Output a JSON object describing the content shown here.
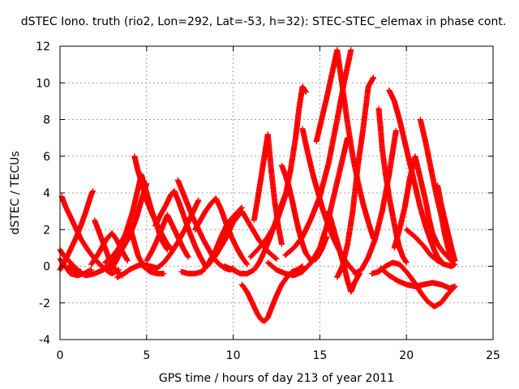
{
  "chart_data": {
    "type": "scatter",
    "title": "dSTEC Iono. truth (rio2, Lon=292, Lat=-53, h=32): STEC-STEC_elemax in phase cont.",
    "xlabel": "GPS time / hours of day 213 of year 2011",
    "ylabel": "dSTEC  / TECUs",
    "xlim": [
      0,
      25
    ],
    "ylim": [
      -4,
      12
    ],
    "xticks": [
      0,
      5,
      10,
      15,
      20,
      25
    ],
    "yticks": [
      -4,
      -2,
      0,
      2,
      4,
      6,
      8,
      10,
      12
    ],
    "grid": true,
    "marker": "plus",
    "color": "#ff0000",
    "tracks": [
      {
        "x": [
          0.0,
          0.2,
          0.5,
          0.8,
          1.0,
          1.2
        ],
        "y": [
          0.9,
          0.6,
          0.3,
          0.0,
          -0.2,
          -0.3
        ]
      },
      {
        "x": [
          0.1,
          0.3,
          0.6,
          0.9,
          1.2,
          1.6,
          2.0,
          2.4,
          2.8,
          3.0,
          3.2,
          3.4
        ],
        "y": [
          3.8,
          3.3,
          2.7,
          2.1,
          1.5,
          0.9,
          0.4,
          0.0,
          -0.3,
          -0.4,
          -0.3,
          -0.2
        ]
      },
      {
        "x": [
          0.0,
          0.3,
          0.6,
          1.0,
          1.4,
          1.8
        ],
        "y": [
          0.4,
          0.0,
          -0.4,
          -0.5,
          -0.4,
          -0.2
        ]
      },
      {
        "x": [
          0.0,
          0.3,
          0.6,
          0.9,
          1.2,
          1.5,
          1.8,
          1.9
        ],
        "y": [
          -0.2,
          0.3,
          0.9,
          1.5,
          2.2,
          3.0,
          3.9,
          4.1
        ]
      },
      {
        "x": [
          0.5,
          1.0,
          1.5,
          2.0,
          2.5,
          3.0,
          3.5,
          4.0,
          4.4,
          4.7,
          5.0
        ],
        "y": [
          0.0,
          -0.3,
          -0.5,
          -0.4,
          -0.2,
          0.2,
          0.8,
          1.6,
          2.6,
          3.6,
          4.5
        ]
      },
      {
        "x": [
          2.0,
          2.2,
          2.4,
          2.6,
          2.8,
          3.0,
          3.2,
          3.4,
          3.6
        ],
        "y": [
          2.5,
          2.0,
          1.5,
          1.0,
          0.5,
          0.1,
          -0.2,
          -0.4,
          -0.5
        ]
      },
      {
        "x": [
          1.8,
          2.1,
          2.4,
          2.7,
          3.0,
          3.3,
          3.6,
          3.9
        ],
        "y": [
          0.1,
          0.5,
          1.0,
          1.5,
          1.8,
          1.4,
          0.8,
          0.3
        ]
      },
      {
        "x": [
          2.6,
          3.0,
          3.4,
          3.8,
          4.2,
          4.5,
          4.7,
          5.0,
          5.3,
          5.6,
          5.8,
          6.0,
          6.2
        ],
        "y": [
          0.2,
          0.5,
          1.0,
          1.8,
          3.0,
          4.2,
          5.0,
          4.0,
          3.0,
          2.2,
          1.6,
          1.2,
          0.9
        ]
      },
      {
        "x": [
          4.3,
          4.5,
          4.8,
          5.0,
          5.3,
          5.6,
          5.9,
          6.2,
          6.5
        ],
        "y": [
          6.0,
          5.2,
          4.3,
          3.6,
          2.9,
          2.3,
          1.7,
          1.2,
          0.9
        ]
      },
      {
        "x": [
          2.9,
          3.2,
          3.5,
          3.8,
          4.0,
          4.2,
          4.5,
          4.8,
          5.2,
          5.6,
          6.0
        ],
        "y": [
          -0.2,
          0.2,
          0.8,
          1.5,
          2.3,
          1.6,
          0.6,
          0.0,
          -0.3,
          -0.4,
          -0.4
        ]
      },
      {
        "x": [
          3.3,
          3.7,
          4.0,
          4.4,
          4.8,
          5.2,
          5.6,
          6.0,
          6.4,
          6.8,
          7.2,
          7.6,
          8.0
        ],
        "y": [
          -0.6,
          -0.4,
          -0.2,
          0.0,
          0.1,
          0.0,
          -0.1,
          0.2,
          0.7,
          1.3,
          2.0,
          2.8,
          3.6
        ]
      },
      {
        "x": [
          5.0,
          5.3,
          5.6,
          5.9,
          6.2,
          6.5,
          6.8,
          7.1,
          7.4
        ],
        "y": [
          0.3,
          0.8,
          1.4,
          2.1,
          2.8,
          2.2,
          1.6,
          1.0,
          0.5
        ]
      },
      {
        "x": [
          5.5,
          5.8,
          6.1,
          6.4,
          6.6,
          6.9,
          7.2,
          7.5,
          7.8,
          8.1,
          8.4
        ],
        "y": [
          2.2,
          2.8,
          3.3,
          3.9,
          4.1,
          3.4,
          2.6,
          1.8,
          1.1,
          0.5,
          0.0
        ]
      },
      {
        "x": [
          6.8,
          7.1,
          7.4,
          7.7,
          8.0,
          8.3,
          8.6,
          8.9,
          9.2,
          9.5,
          9.8,
          10.0
        ],
        "y": [
          4.7,
          4.0,
          3.3,
          2.6,
          2.0,
          1.4,
          0.9,
          0.4,
          0.1,
          -0.1,
          -0.2,
          -0.1
        ]
      },
      {
        "x": [
          7.0,
          7.4,
          7.8,
          8.2,
          8.6,
          9.0,
          9.3,
          9.6,
          9.9,
          10.2,
          10.5
        ],
        "y": [
          -0.3,
          -0.4,
          -0.4,
          -0.3,
          0.2,
          0.9,
          1.6,
          2.2,
          2.6,
          2.9,
          3.2
        ]
      },
      {
        "x": [
          7.8,
          8.1,
          8.4,
          8.7,
          9.0,
          9.3,
          9.6,
          9.9,
          10.2,
          10.5,
          10.8
        ],
        "y": [
          2.0,
          2.5,
          3.0,
          3.4,
          3.7,
          3.1,
          2.3,
          1.6,
          1.0,
          0.5,
          0.1
        ]
      },
      {
        "x": [
          8.5,
          9.0,
          9.5,
          10.0,
          10.5,
          11.0,
          11.5,
          12.0,
          12.5
        ],
        "y": [
          0.0,
          0.6,
          1.4,
          2.4,
          3.0,
          2.2,
          1.4,
          0.8,
          0.4
        ]
      },
      {
        "x": [
          9.5,
          10.0,
          10.4,
          10.8,
          11.2,
          11.5,
          11.8,
          12.1,
          12.4,
          12.7,
          13.0
        ],
        "y": [
          0.0,
          -0.2,
          -0.4,
          -0.4,
          -0.2,
          0.2,
          0.8,
          1.5,
          2.3,
          3.1,
          3.9
        ]
      },
      {
        "x": [
          10.5,
          10.8,
          11.1,
          11.4,
          11.6,
          11.8,
          12.0,
          12.2,
          12.5,
          12.8,
          13.1,
          13.4,
          13.7,
          14.0
        ],
        "y": [
          -1.0,
          -1.4,
          -2.0,
          -2.6,
          -2.9,
          -3.0,
          -2.8,
          -2.3,
          -1.6,
          -1.0,
          -0.6,
          -0.3,
          -0.2,
          0.0
        ]
      },
      {
        "x": [
          11.2,
          11.4,
          11.6,
          11.8,
          12.0,
          12.2,
          12.4,
          12.6,
          12.8
        ],
        "y": [
          2.5,
          3.6,
          4.8,
          6.0,
          7.2,
          5.2,
          3.5,
          2.2,
          1.2
        ]
      },
      {
        "x": [
          11.0,
          11.5,
          12.0,
          12.5,
          13.0,
          13.3,
          13.6,
          13.8,
          14.0,
          14.2
        ],
        "y": [
          0.5,
          1.0,
          1.6,
          2.4,
          3.8,
          5.2,
          7.0,
          8.6,
          9.8,
          9.5
        ]
      },
      {
        "x": [
          12.8,
          13.0,
          13.2,
          13.4,
          13.6,
          13.8,
          14.0,
          14.2,
          14.5,
          14.8,
          15.1,
          15.4
        ],
        "y": [
          5.5,
          5.0,
          4.4,
          3.6,
          2.7,
          1.9,
          1.2,
          0.7,
          0.3,
          0.4,
          0.9,
          1.6
        ]
      },
      {
        "x": [
          12.0,
          12.5,
          13.0,
          13.5,
          14.0,
          14.5,
          15.0,
          15.4,
          15.8,
          16.2,
          16.6
        ],
        "y": [
          0.2,
          -0.2,
          -0.4,
          -0.5,
          -0.3,
          0.2,
          1.0,
          2.2,
          3.8,
          5.4,
          7.0
        ]
      },
      {
        "x": [
          13.0,
          13.5,
          14.0,
          14.5,
          15.0,
          15.5,
          16.0,
          16.4,
          16.8
        ],
        "y": [
          0.6,
          1.0,
          1.6,
          2.6,
          3.8,
          5.6,
          8.0,
          10.0,
          11.8
        ]
      },
      {
        "x": [
          14.0,
          14.3,
          14.6,
          14.9,
          15.2,
          15.5,
          15.8,
          16.1,
          16.4,
          16.7,
          17.0
        ],
        "y": [
          7.5,
          6.2,
          5.0,
          4.0,
          3.0,
          2.2,
          1.5,
          0.9,
          0.4,
          0.0,
          -0.3
        ]
      },
      {
        "x": [
          14.8,
          15.1,
          15.4,
          15.7,
          16.0,
          16.3,
          16.6,
          16.9,
          17.2,
          17.5,
          17.8,
          18.0,
          18.1
        ],
        "y": [
          6.8,
          8.0,
          9.2,
          10.5,
          11.8,
          9.8,
          7.8,
          6.0,
          4.6,
          3.4,
          2.4,
          1.8,
          1.5
        ]
      },
      {
        "x": [
          16.0,
          16.3,
          16.6,
          16.9,
          17.2,
          17.5,
          17.8,
          18.1
        ],
        "y": [
          -0.6,
          0.0,
          1.2,
          3.0,
          5.5,
          7.5,
          9.8,
          10.3
        ]
      },
      {
        "x": [
          15.5,
          15.8,
          16.1,
          16.4,
          16.6,
          16.8,
          17.0,
          17.3
        ],
        "y": [
          3.0,
          2.0,
          1.0,
          0.0,
          -0.8,
          -1.4,
          -0.9,
          -0.4
        ]
      },
      {
        "x": [
          17.0,
          17.4,
          17.8,
          18.2,
          18.6,
          19.0,
          19.4
        ],
        "y": [
          -0.4,
          -0.2,
          0.5,
          1.5,
          3.0,
          5.0,
          7.4
        ]
      },
      {
        "x": [
          18.4,
          18.5,
          18.6,
          18.8,
          19.0,
          19.2,
          19.4,
          19.6,
          19.8,
          20.0
        ],
        "y": [
          8.6,
          7.6,
          6.4,
          5.0,
          3.8,
          2.8,
          1.8,
          1.0,
          0.5,
          0.2
        ]
      },
      {
        "x": [
          19.0,
          19.3,
          19.6,
          19.9,
          20.2,
          20.5,
          20.8,
          21.1,
          21.4,
          21.6,
          21.8,
          22.0
        ],
        "y": [
          9.6,
          9.0,
          8.0,
          6.8,
          5.6,
          4.4,
          3.2,
          2.2,
          1.4,
          0.9,
          0.5,
          0.3
        ]
      },
      {
        "x": [
          19.3,
          19.6,
          19.9,
          20.2,
          20.5,
          20.8,
          21.1,
          21.3,
          21.5,
          21.8,
          22.1,
          22.4,
          22.7
        ],
        "y": [
          1.0,
          2.0,
          3.2,
          4.8,
          6.0,
          4.8,
          3.6,
          2.6,
          1.8,
          1.2,
          0.8,
          0.5,
          0.2
        ]
      },
      {
        "x": [
          20.8,
          21.1,
          21.4,
          21.7,
          22.0,
          22.2,
          22.4,
          22.6
        ],
        "y": [
          8.0,
          6.8,
          5.4,
          4.0,
          2.8,
          1.8,
          1.0,
          0.4
        ]
      },
      {
        "x": [
          21.8,
          22.0,
          22.2,
          22.4,
          22.6,
          22.8
        ],
        "y": [
          4.4,
          3.4,
          2.6,
          1.8,
          1.0,
          0.3
        ]
      },
      {
        "x": [
          18.0,
          18.4,
          18.8,
          19.2,
          19.6,
          20.0,
          20.4,
          20.8,
          21.2,
          21.6,
          22.0,
          22.4,
          22.8
        ],
        "y": [
          -0.4,
          -0.3,
          0.0,
          0.2,
          0.1,
          -0.3,
          -0.8,
          -1.4,
          -1.9,
          -2.2,
          -2.0,
          -1.5,
          -1.1
        ]
      },
      {
        "x": [
          18.5,
          19.0,
          19.5,
          20.0,
          20.5,
          21.0,
          21.5,
          22.0,
          22.5,
          22.8
        ],
        "y": [
          -0.1,
          -0.5,
          -0.8,
          -1.0,
          -1.1,
          -1.0,
          -0.9,
          -1.0,
          -1.2,
          -1.1
        ]
      },
      {
        "x": [
          20.0,
          20.5,
          21.0,
          21.4,
          21.8,
          22.2,
          22.6,
          22.8
        ],
        "y": [
          2.0,
          1.6,
          1.1,
          0.6,
          0.3,
          0.1,
          0.0,
          0.1
        ]
      }
    ]
  }
}
